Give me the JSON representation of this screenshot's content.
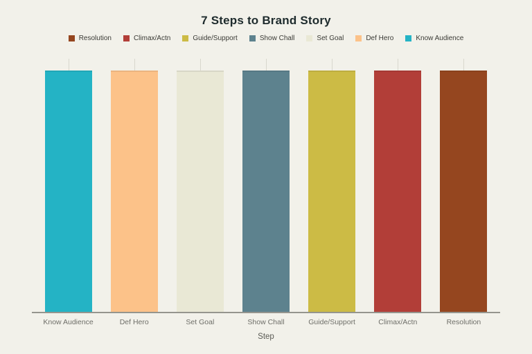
{
  "chart": {
    "title": "7 Steps to Brand Story"
  },
  "legend": {
    "position": "top",
    "items": [
      {
        "label": "Resolution",
        "color": "#95461f"
      },
      {
        "label": "Climax/Actn",
        "color": "#b23e38"
      },
      {
        "label": "Guide/Support",
        "color": "#ccbb45"
      },
      {
        "label": "Show Chall",
        "color": "#5d828e"
      },
      {
        "label": "Set Goal",
        "color": "#e9e8d5"
      },
      {
        "label": "Def Hero",
        "color": "#fcc289"
      },
      {
        "label": "Know Audience",
        "color": "#24b3c5"
      }
    ]
  },
  "chart_data": {
    "type": "bar",
    "title": "7 Steps to Brand Story",
    "categories": [
      "Know Audience",
      "Def Hero",
      "Set Goal",
      "Show Chall",
      "Guide/Support",
      "Climax/Actn",
      "Resolution"
    ],
    "values": [
      1,
      1,
      1,
      1,
      1,
      1,
      1
    ],
    "bar_colors": [
      "#24b3c5",
      "#fcc289",
      "#e9e8d5",
      "#5d828e",
      "#ccbb45",
      "#b23e38",
      "#95461f"
    ],
    "xlabel": "Step",
    "ylabel": "",
    "y_axis_shown": false,
    "grid": false,
    "legend_position": "top",
    "background_color": "#f2f1ea",
    "axis_line_color": "#95958e"
  }
}
